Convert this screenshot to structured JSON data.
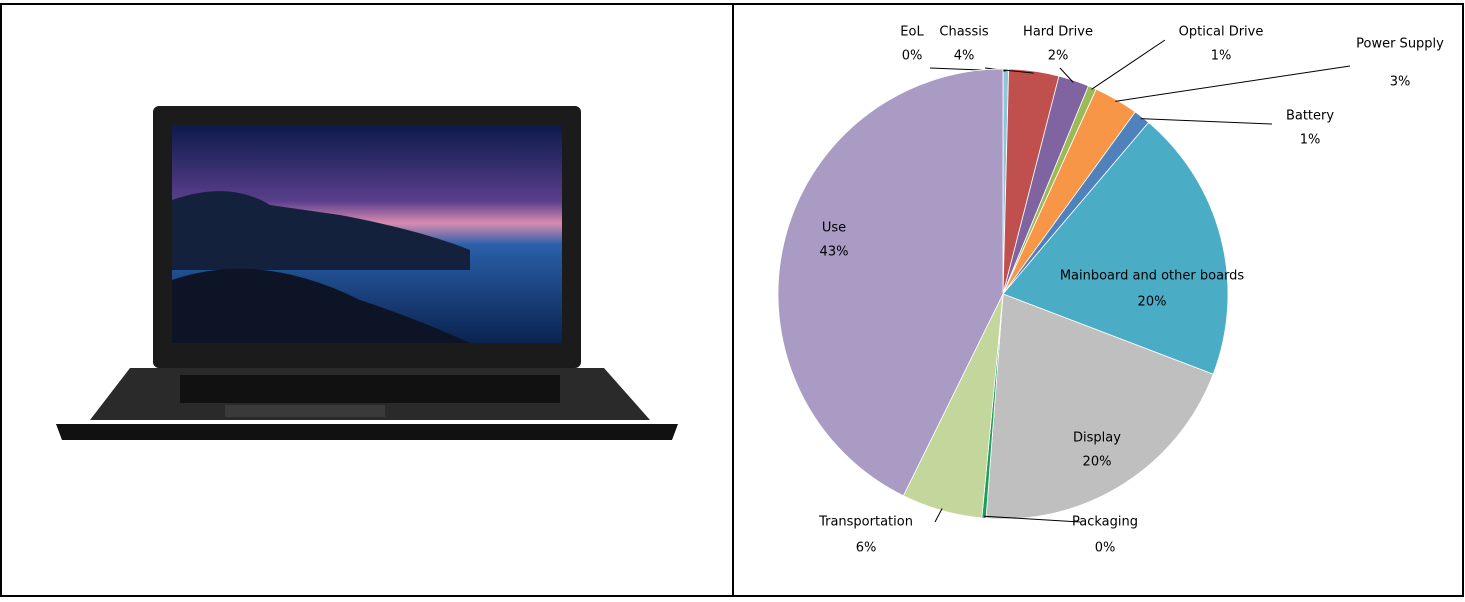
{
  "chart_data": {
    "type": "pie",
    "categories": [
      "EoL",
      "Chassis",
      "Hard Drive",
      "Optical Drive",
      "Power Supply",
      "Battery",
      "Mainboard and other boards",
      "Display",
      "Packaging",
      "Transportation",
      "Use"
    ],
    "values": [
      0.4,
      3.6,
      2.2,
      0.6,
      3.2,
      1.2,
      19.6,
      20.4,
      0.3,
      5.8,
      42.7
    ],
    "value_labels": [
      "0%",
      "4%",
      "2%",
      "1%",
      "3%",
      "1%",
      "20%",
      "20%",
      "0%",
      "6%",
      "43%"
    ],
    "colors": [
      "#8fc6dc",
      "#c0504d",
      "#8064a2",
      "#9bbb59",
      "#f79646",
      "#4f81bd",
      "#4bacc6",
      "#bfbfbf",
      "#1a9e5a",
      "#c3d69b",
      "#a99bc4"
    ]
  }
}
